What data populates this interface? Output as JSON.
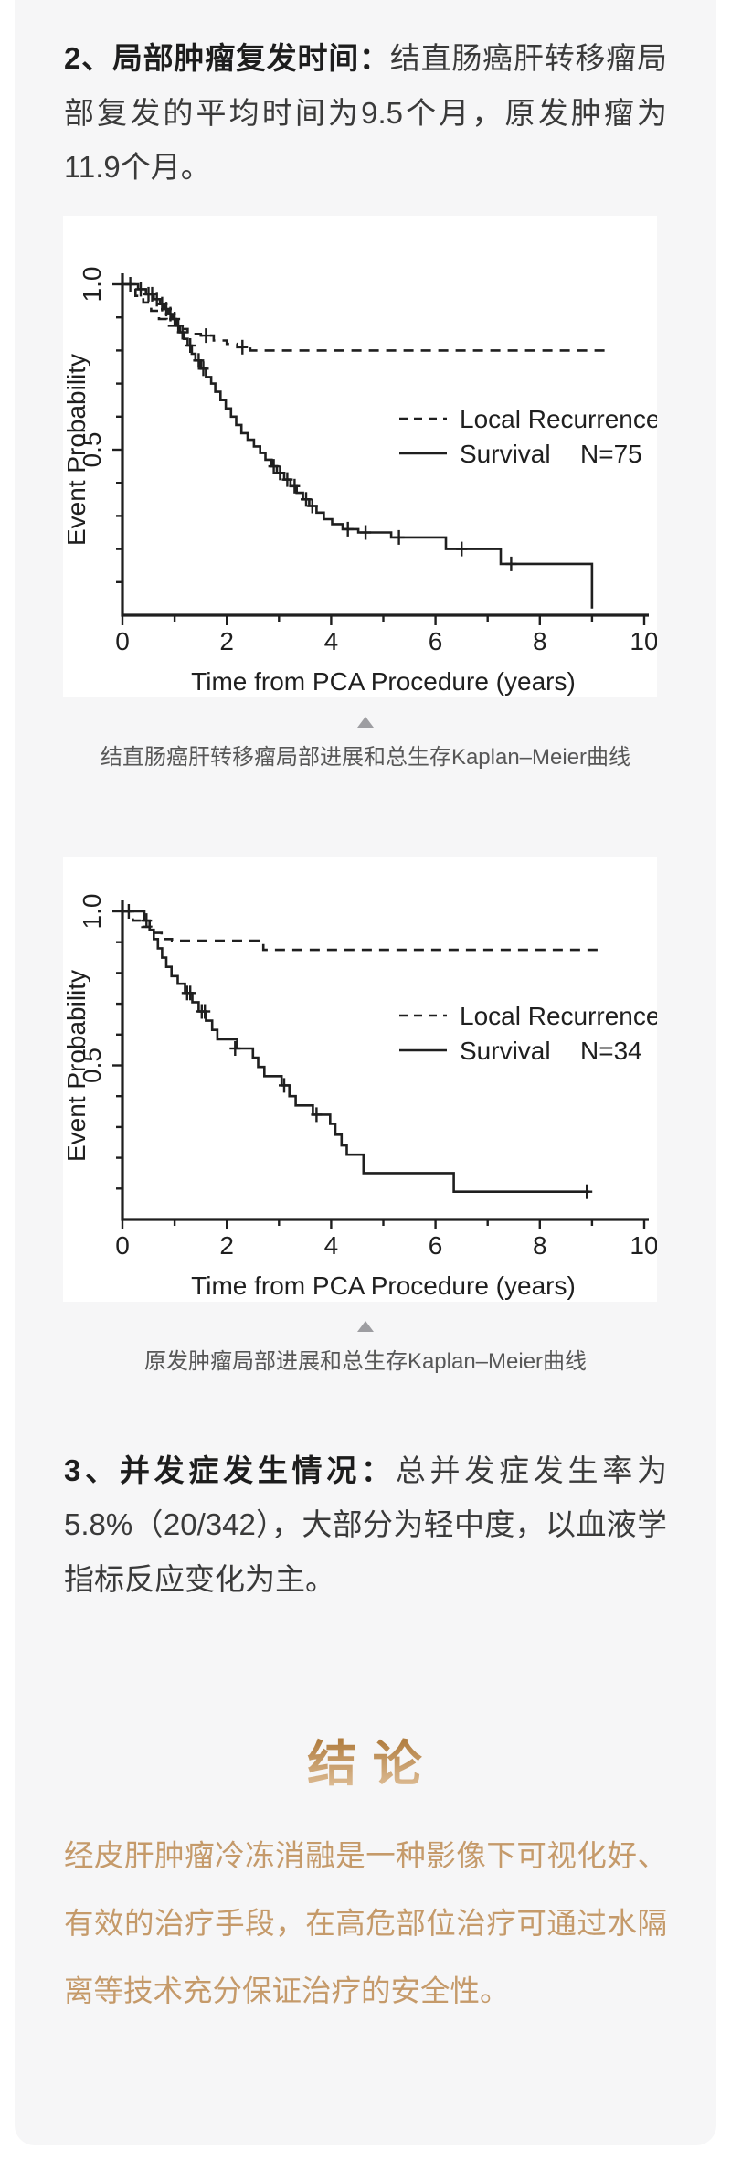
{
  "article": {
    "sections": {
      "recurrence": {
        "label": "2、局部肿瘤复发时间：",
        "text": "结直肠癌肝转移瘤局部复发的平均时间为9.5个月，原发肿瘤为11.9个月。"
      },
      "complications": {
        "label": "3、并发症发生情况：",
        "text": "总并发症发生率为5.8%（20/342），大部分为轻中度，以血液学指标反应变化为主。"
      }
    },
    "figures": [
      {
        "caption": "结直肠癌肝转移瘤局部进展和总生存Kaplan–Meier曲线"
      },
      {
        "caption": "原发肿瘤局部进展和总生存Kaplan–Meier曲线"
      }
    ],
    "conclusion": {
      "title": "结 论",
      "text": "经皮肝肿瘤冷冻消融是一种影像下可视化好、有效的治疗手段，在高危部位治疗可通过水隔离等技术充分保证治疗的安全性。"
    }
  },
  "colors": {
    "page_bg": "#ffffff",
    "card_bg": "#f6f6f7",
    "body_text": "#3a3a3a",
    "bold_text": "#1d1d1d",
    "caption_text": "#575757",
    "arrow_grey": "#9d9da1",
    "gold_text": "#c59a6a",
    "gold_title_top": "#b27f42",
    "gold_title_bottom": "#e0c09a",
    "chart_ink": "#1f1f1f"
  },
  "chart_data": [
    {
      "type": "line",
      "subtype": "kaplan-meier-step",
      "title": "",
      "xlabel": "Time from PCA Procedure (years)",
      "ylabel": "Event Probability",
      "xlim": [
        0,
        10
      ],
      "ylim": [
        0,
        1.0
      ],
      "grid": false,
      "legend_position": "center-right",
      "xticks": [
        "0",
        "2",
        "4",
        "6",
        "8",
        "10"
      ],
      "yticks": [
        {
          "value": 1.0,
          "label": "1.0"
        },
        {
          "value": 0.5,
          "label": "0.5"
        }
      ],
      "series": [
        {
          "name": "Local Recurrence",
          "style": "dashed",
          "points": [
            [
              0,
              1.0
            ],
            [
              0.25,
              0.965
            ],
            [
              0.4,
              0.945
            ],
            [
              0.55,
              0.92
            ],
            [
              0.7,
              0.895
            ],
            [
              0.85,
              0.875
            ],
            [
              1.05,
              0.865
            ],
            [
              1.25,
              0.85
            ],
            [
              1.5,
              0.845
            ],
            [
              1.75,
              0.83
            ],
            [
              2.0,
              0.82
            ],
            [
              2.2,
              0.81
            ],
            [
              2.45,
              0.8
            ],
            [
              9.25,
              0.8
            ]
          ],
          "censors": [
            [
              1.6,
              0.845
            ],
            [
              2.3,
              0.81
            ]
          ]
        },
        {
          "name": "Survival",
          "n_label": "N=75",
          "style": "solid",
          "points": [
            [
              0,
              1.0
            ],
            [
              0.3,
              0.985
            ],
            [
              0.45,
              0.97
            ],
            [
              0.6,
              0.955
            ],
            [
              0.72,
              0.94
            ],
            [
              0.8,
              0.925
            ],
            [
              0.88,
              0.91
            ],
            [
              0.96,
              0.895
            ],
            [
              1.03,
              0.875
            ],
            [
              1.1,
              0.855
            ],
            [
              1.18,
              0.835
            ],
            [
              1.25,
              0.815
            ],
            [
              1.33,
              0.79
            ],
            [
              1.4,
              0.77
            ],
            [
              1.5,
              0.745
            ],
            [
              1.6,
              0.72
            ],
            [
              1.7,
              0.7
            ],
            [
              1.78,
              0.675
            ],
            [
              1.88,
              0.65
            ],
            [
              1.98,
              0.625
            ],
            [
              2.08,
              0.6
            ],
            [
              2.18,
              0.575
            ],
            [
              2.28,
              0.55
            ],
            [
              2.4,
              0.53
            ],
            [
              2.52,
              0.51
            ],
            [
              2.64,
              0.49
            ],
            [
              2.74,
              0.47
            ],
            [
              2.86,
              0.45
            ],
            [
              2.96,
              0.43
            ],
            [
              3.1,
              0.41
            ],
            [
              3.22,
              0.39
            ],
            [
              3.34,
              0.37
            ],
            [
              3.46,
              0.35
            ],
            [
              3.58,
              0.33
            ],
            [
              3.72,
              0.31
            ],
            [
              3.86,
              0.29
            ],
            [
              4.02,
              0.275
            ],
            [
              4.22,
              0.26
            ],
            [
              4.52,
              0.25
            ],
            [
              5.15,
              0.235
            ],
            [
              6.2,
              0.2
            ],
            [
              7.25,
              0.155
            ],
            [
              9.0,
              0.02
            ]
          ],
          "censors": [
            [
              0.15,
              1.0
            ],
            [
              0.35,
              0.985
            ],
            [
              0.5,
              0.97
            ],
            [
              0.57,
              0.97
            ],
            [
              0.66,
              0.955
            ],
            [
              0.76,
              0.94
            ],
            [
              0.84,
              0.925
            ],
            [
              0.92,
              0.91
            ],
            [
              1.0,
              0.895
            ],
            [
              1.07,
              0.875
            ],
            [
              1.15,
              0.855
            ],
            [
              1.3,
              0.815
            ],
            [
              1.46,
              0.77
            ],
            [
              1.55,
              0.745
            ],
            [
              2.9,
              0.45
            ],
            [
              3.02,
              0.43
            ],
            [
              3.16,
              0.41
            ],
            [
              3.3,
              0.39
            ],
            [
              3.52,
              0.35
            ],
            [
              3.64,
              0.33
            ],
            [
              4.32,
              0.26
            ],
            [
              4.66,
              0.25
            ],
            [
              5.3,
              0.235
            ],
            [
              6.5,
              0.2
            ],
            [
              7.45,
              0.155
            ]
          ]
        }
      ]
    },
    {
      "type": "line",
      "subtype": "kaplan-meier-step",
      "title": "",
      "xlabel": "Time from PCA Procedure (years)",
      "ylabel": "Event Probability",
      "xlim": [
        0,
        10
      ],
      "ylim": [
        0,
        1.0
      ],
      "grid": false,
      "legend_position": "center-right",
      "xticks": [
        "0",
        "2",
        "4",
        "6",
        "8",
        "10"
      ],
      "yticks": [
        {
          "value": 1.0,
          "label": "1.0"
        },
        {
          "value": 0.5,
          "label": "0.5"
        }
      ],
      "series": [
        {
          "name": "Local Recurrence",
          "style": "dashed",
          "points": [
            [
              0,
              1.0
            ],
            [
              0.2,
              0.97
            ],
            [
              0.38,
              0.95
            ],
            [
              0.55,
              0.93
            ],
            [
              0.75,
              0.91
            ],
            [
              0.95,
              0.905
            ],
            [
              2.7,
              0.875
            ],
            [
              9.2,
              0.875
            ]
          ],
          "censors": []
        },
        {
          "name": "Survival",
          "n_label": "N=34",
          "style": "solid",
          "points": [
            [
              0,
              1.0
            ],
            [
              0.42,
              0.97
            ],
            [
              0.52,
              0.94
            ],
            [
              0.6,
              0.91
            ],
            [
              0.68,
              0.88
            ],
            [
              0.76,
              0.85
            ],
            [
              0.84,
              0.82
            ],
            [
              0.94,
              0.79
            ],
            [
              1.06,
              0.765
            ],
            [
              1.2,
              0.735
            ],
            [
              1.34,
              0.705
            ],
            [
              1.46,
              0.675
            ],
            [
              1.6,
              0.645
            ],
            [
              1.72,
              0.615
            ],
            [
              1.82,
              0.585
            ],
            [
              2.2,
              0.555
            ],
            [
              2.5,
              0.525
            ],
            [
              2.6,
              0.495
            ],
            [
              2.72,
              0.465
            ],
            [
              3.05,
              0.435
            ],
            [
              3.2,
              0.4
            ],
            [
              3.32,
              0.37
            ],
            [
              3.65,
              0.34
            ],
            [
              3.98,
              0.31
            ],
            [
              4.08,
              0.275
            ],
            [
              4.2,
              0.24
            ],
            [
              4.3,
              0.21
            ],
            [
              4.62,
              0.15
            ],
            [
              6.35,
              0.09
            ],
            [
              8.95,
              0.09
            ]
          ],
          "censors": [
            [
              0.12,
              1.0
            ],
            [
              0.46,
              0.97
            ],
            [
              1.24,
              0.735
            ],
            [
              1.3,
              0.735
            ],
            [
              1.52,
              0.675
            ],
            [
              1.58,
              0.675
            ],
            [
              2.16,
              0.555
            ],
            [
              3.1,
              0.435
            ],
            [
              3.72,
              0.34
            ],
            [
              8.9,
              0.09
            ]
          ]
        }
      ]
    }
  ]
}
